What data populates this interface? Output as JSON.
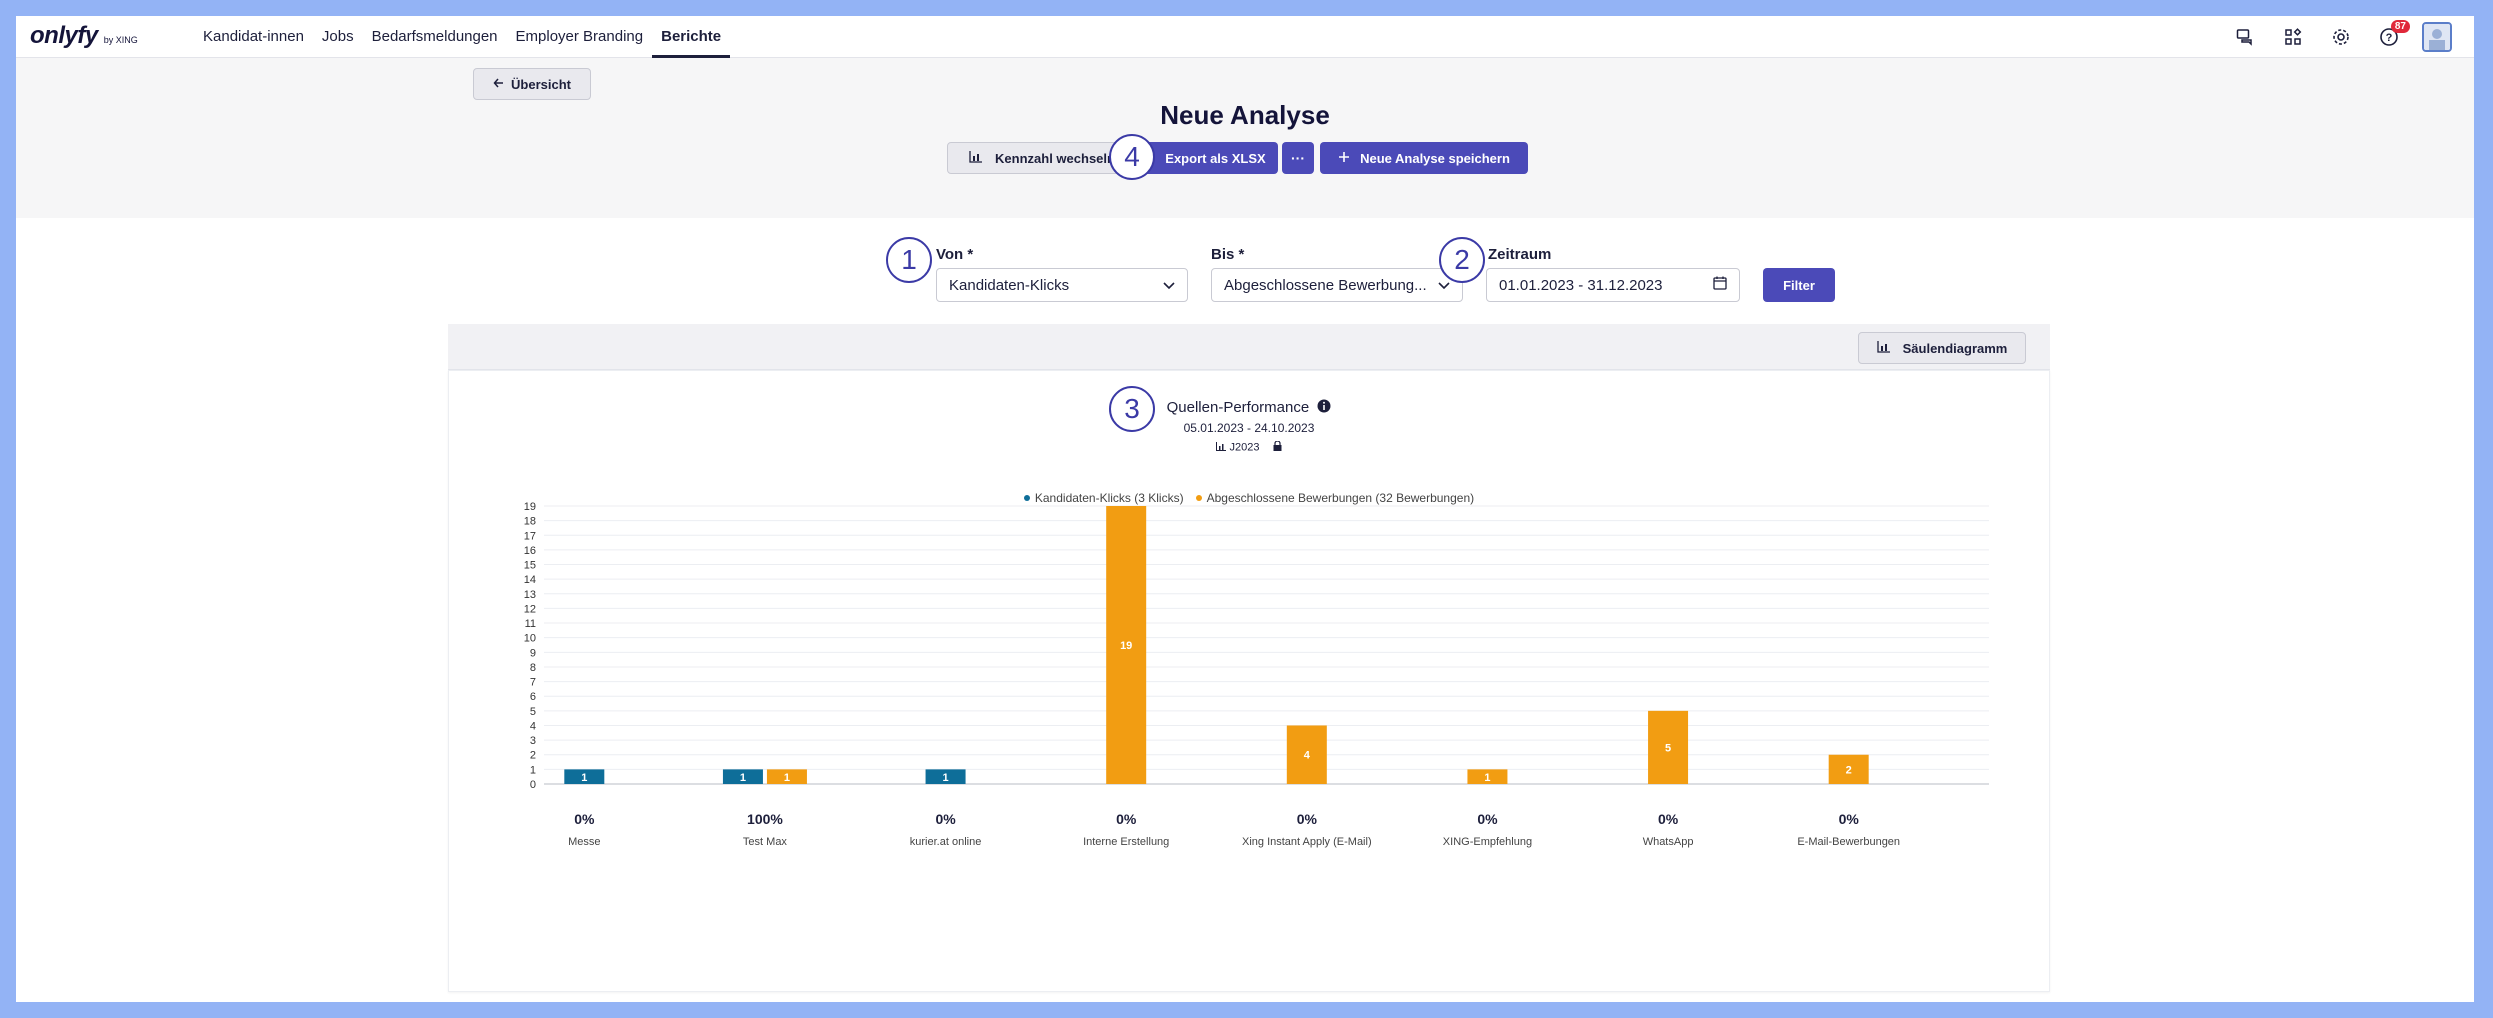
{
  "topnav": {
    "logo": "onlyfy",
    "logo_sub": "by XING",
    "items": [
      {
        "label": "Kandidat-innen",
        "active": false
      },
      {
        "label": "Jobs",
        "active": false
      },
      {
        "label": "Bedarfsmeldungen",
        "active": false
      },
      {
        "label": "Employer Branding",
        "active": false
      },
      {
        "label": "Berichte",
        "active": true
      }
    ],
    "icons": [
      "chat-icon",
      "apps-icon",
      "settings-icon",
      "help-icon",
      "avatar"
    ],
    "notification_count": "87"
  },
  "header": {
    "back_label": "Übersicht",
    "title": "Neue Analyse",
    "kennzahl_label": "Kennzahl wechseln",
    "export_label": "Export als XLSX",
    "more_label": "···",
    "save_label": "Neue Analyse speichern"
  },
  "markers": [
    "1",
    "2",
    "3",
    "4"
  ],
  "filters": {
    "von_label": "Von *",
    "von_value": "Kandidaten-Klicks",
    "bis_label": "Bis *",
    "bis_value": "Abgeschlossene Bewerbung...",
    "zeitraum_label": "Zeitraum",
    "zeitraum_value": "01.01.2023 - 31.12.2023",
    "filter_label": "Filter"
  },
  "chart_toolbar": {
    "chart_type_label": "Säulendiagramm"
  },
  "colors": {
    "primary": "#4b4ab8",
    "series_clicks": "#0e6e99",
    "series_applications": "#f29d12"
  },
  "chart_data": {
    "type": "bar",
    "title": "Quellen-Performance",
    "date_range": "05.01.2023 - 24.10.2023",
    "tag": "J2023",
    "categories": [
      "Messe",
      "Test Max",
      "kurier.at online",
      "Interne Erstellung",
      "Xing Instant Apply (E-Mail)",
      "XING-Empfehlung",
      "WhatsApp",
      "E-Mail-Bewerbungen"
    ],
    "percentages": [
      "0%",
      "100%",
      "0%",
      "0%",
      "0%",
      "0%",
      "0%",
      "0%"
    ],
    "series": [
      {
        "name": "Kandidaten-Klicks (3 Klicks)",
        "values": [
          1,
          1,
          1,
          0,
          0,
          0,
          0,
          0
        ]
      },
      {
        "name": "Abgeschlossene Bewerbungen (32 Bewerbungen)",
        "values": [
          0,
          1,
          0,
          19,
          4,
          1,
          5,
          2
        ]
      }
    ],
    "ylim": [
      0,
      19
    ],
    "yticks": [
      0,
      1,
      2,
      3,
      4,
      5,
      6,
      7,
      8,
      9,
      10,
      11,
      12,
      13,
      14,
      15,
      16,
      17,
      18,
      19
    ],
    "grid": true,
    "legend_position": "top"
  }
}
